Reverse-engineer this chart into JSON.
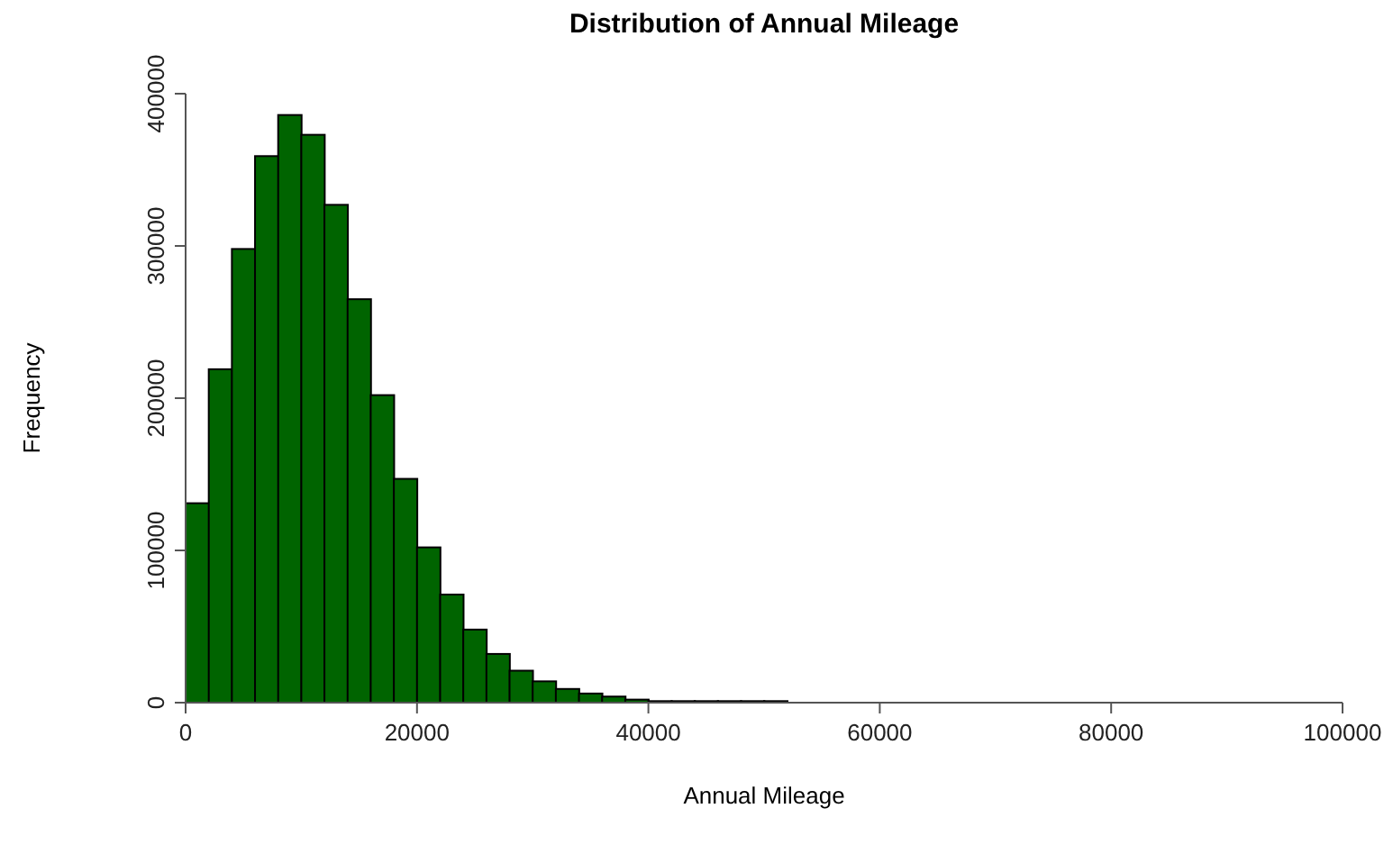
{
  "chart_data": {
    "type": "histogram",
    "title": "Distribution of Annual Mileage",
    "xlabel": "Annual Mileage",
    "ylabel": "Frequency",
    "bins": [
      0,
      2000,
      4000,
      6000,
      8000,
      10000,
      12000,
      14000,
      16000,
      18000,
      20000,
      22000,
      24000,
      26000,
      28000,
      30000,
      32000,
      34000,
      36000,
      38000,
      40000,
      42000,
      44000,
      46000,
      48000,
      50000,
      52000,
      54000,
      56000,
      58000,
      60000,
      62000,
      64000,
      66000,
      68000,
      70000,
      72000,
      74000,
      76000,
      78000,
      80000,
      82000,
      84000,
      86000,
      88000,
      90000,
      92000,
      94000,
      96000,
      98000,
      100000
    ],
    "values": [
      131000,
      219000,
      298000,
      359000,
      386000,
      373000,
      327000,
      265000,
      202000,
      147000,
      102000,
      71000,
      48000,
      32000,
      21000,
      14000,
      9000,
      6000,
      4000,
      2000,
      1000,
      1000,
      1000,
      1000,
      1000,
      1000,
      0,
      0,
      0,
      0,
      0,
      0,
      0,
      0,
      0,
      0,
      0,
      0,
      0,
      0,
      0,
      0,
      0,
      0,
      0,
      0,
      0,
      0,
      0,
      0
    ],
    "color": "#006400",
    "xlim": [
      0,
      100000
    ],
    "xticks": [
      0,
      20000,
      40000,
      60000,
      80000,
      100000
    ],
    "ylim": [
      0,
      400000
    ],
    "yticks": [
      0,
      100000,
      200000,
      300000,
      400000
    ]
  }
}
